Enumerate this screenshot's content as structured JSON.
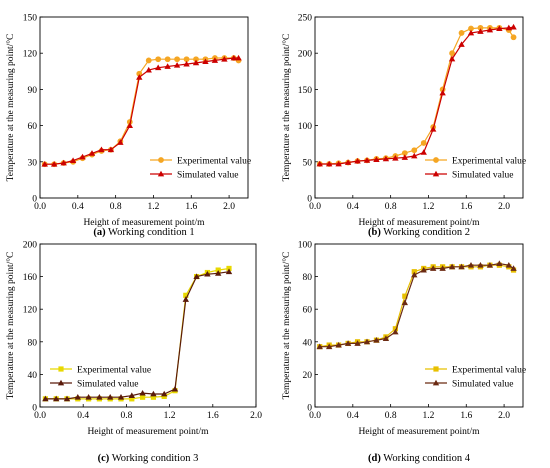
{
  "chart_data": [
    {
      "type": "line",
      "xlabel": "Height of measurement point/m",
      "ylabel": "Temperature at the measuring point/°C",
      "caption_bold": "(a)",
      "caption_text": " Working condition 1",
      "xlim": [
        0.0,
        2.2
      ],
      "ylim": [
        0,
        150
      ],
      "xticks": [
        "0.0",
        "0.4",
        "0.8",
        "1.2",
        "1.6",
        "2.0"
      ],
      "yticks": [
        "0",
        "30",
        "60",
        "90",
        "120",
        "150"
      ],
      "legend_position": "bottom-right",
      "series": [
        {
          "name": "Experimental value",
          "color": "#f5a623",
          "marker": "circle",
          "x": [
            0.05,
            0.15,
            0.25,
            0.35,
            0.45,
            0.55,
            0.65,
            0.75,
            0.85,
            0.95,
            1.05,
            1.15,
            1.25,
            1.35,
            1.45,
            1.55,
            1.65,
            1.75,
            1.85,
            1.95,
            2.05,
            2.1
          ],
          "y": [
            28,
            28,
            29,
            30,
            33,
            36,
            39,
            40,
            47,
            63,
            103,
            114,
            115,
            115,
            115,
            115,
            115,
            115,
            116,
            116,
            116,
            114
          ]
        },
        {
          "name": "Simulated value",
          "color": "#cc0000",
          "marker": "triangle",
          "x": [
            0.05,
            0.15,
            0.25,
            0.35,
            0.45,
            0.55,
            0.65,
            0.75,
            0.85,
            0.95,
            1.05,
            1.15,
            1.25,
            1.35,
            1.45,
            1.55,
            1.65,
            1.75,
            1.85,
            1.95,
            2.05,
            2.1
          ],
          "y": [
            28,
            28,
            29,
            31,
            34,
            37,
            40,
            40,
            46,
            60,
            100,
            106,
            108,
            109,
            110,
            111,
            112,
            113,
            114,
            115,
            116,
            116
          ]
        }
      ]
    },
    {
      "type": "line",
      "xlabel": "Height of measurement point/m",
      "ylabel": "Temperature at the measuring point/°C",
      "caption_bold": "(b)",
      "caption_text": " Working condition 2",
      "xlim": [
        0.0,
        2.2
      ],
      "ylim": [
        0,
        250
      ],
      "xticks": [
        "0.0",
        "0.4",
        "0.8",
        "1.2",
        "1.6",
        "2.0"
      ],
      "yticks": [
        "0",
        "50",
        "100",
        "150",
        "200",
        "250"
      ],
      "legend_position": "bottom-right",
      "series": [
        {
          "name": "Experimental value",
          "color": "#f5a623",
          "marker": "circle",
          "x": [
            0.05,
            0.15,
            0.25,
            0.35,
            0.45,
            0.55,
            0.65,
            0.75,
            0.85,
            0.95,
            1.05,
            1.15,
            1.25,
            1.35,
            1.45,
            1.55,
            1.65,
            1.75,
            1.85,
            1.95,
            2.05,
            2.1
          ],
          "y": [
            47,
            47,
            48,
            49,
            51,
            52,
            54,
            55,
            58,
            62,
            66,
            76,
            98,
            150,
            200,
            228,
            234,
            235,
            235,
            235,
            232,
            222
          ]
        },
        {
          "name": "Simulated value",
          "color": "#cc0000",
          "marker": "triangle",
          "x": [
            0.05,
            0.15,
            0.25,
            0.35,
            0.45,
            0.55,
            0.65,
            0.75,
            0.85,
            0.95,
            1.05,
            1.15,
            1.25,
            1.35,
            1.45,
            1.55,
            1.65,
            1.75,
            1.85,
            1.95,
            2.05,
            2.1
          ],
          "y": [
            47,
            47,
            47,
            49,
            51,
            52,
            53,
            54,
            55,
            56,
            58,
            63,
            95,
            145,
            192,
            212,
            228,
            230,
            232,
            234,
            235,
            236
          ]
        }
      ]
    },
    {
      "type": "line",
      "xlabel": "Height of measurement point/m",
      "ylabel": "Temperature at the measuring point/°C",
      "caption_bold": "(c)",
      "caption_text": " Working condition 3",
      "xlim": [
        0.0,
        2.0
      ],
      "ylim": [
        0,
        200
      ],
      "xticks": [
        "0.0",
        "0.4",
        "0.8",
        "1.2",
        "1.6",
        "2.0"
      ],
      "yticks": [
        "0",
        "40",
        "80",
        "120",
        "160",
        "200"
      ],
      "legend_position": "bottom-left",
      "series": [
        {
          "name": "Experimental value",
          "color": "#e8d800",
          "marker": "square",
          "x": [
            0.05,
            0.15,
            0.25,
            0.35,
            0.45,
            0.55,
            0.65,
            0.75,
            0.85,
            0.95,
            1.05,
            1.15,
            1.25,
            1.35,
            1.45,
            1.55,
            1.65,
            1.75
          ],
          "y": [
            10,
            10,
            10,
            10,
            10,
            10,
            10,
            10,
            10,
            12,
            12,
            13,
            20,
            137,
            160,
            165,
            168,
            170
          ]
        },
        {
          "name": "Simulated value",
          "color": "#5a1a0a",
          "marker": "triangle",
          "x": [
            0.05,
            0.15,
            0.25,
            0.35,
            0.45,
            0.55,
            0.65,
            0.75,
            0.85,
            0.95,
            1.05,
            1.15,
            1.25,
            1.35,
            1.45,
            1.55,
            1.65,
            1.75
          ],
          "y": [
            10,
            10,
            10,
            12,
            12,
            12,
            12,
            12,
            14,
            17,
            16,
            16,
            22,
            132,
            160,
            163,
            164,
            166
          ]
        }
      ]
    },
    {
      "type": "line",
      "xlabel": "Height of measurement point/m",
      "ylabel": "Temperature at the measuring point/°C",
      "caption_bold": "(d)",
      "caption_text": " Working condition 4",
      "xlim": [
        0.0,
        2.2
      ],
      "ylim": [
        0,
        100
      ],
      "xticks": [
        "0.0",
        "0.4",
        "0.8",
        "1.2",
        "1.6",
        "2.0"
      ],
      "yticks": [
        "0",
        "20",
        "40",
        "60",
        "80",
        "100"
      ],
      "legend_position": "bottom-right",
      "series": [
        {
          "name": "Experimental value",
          "color": "#e8c000",
          "marker": "square",
          "x": [
            0.05,
            0.15,
            0.25,
            0.35,
            0.45,
            0.55,
            0.65,
            0.75,
            0.85,
            0.95,
            1.05,
            1.15,
            1.25,
            1.35,
            1.45,
            1.55,
            1.65,
            1.75,
            1.85,
            1.95,
            2.05,
            2.1
          ],
          "y": [
            37,
            38,
            38,
            39,
            40,
            40,
            41,
            43,
            48,
            68,
            83,
            85,
            86,
            86,
            86,
            86,
            86,
            86,
            87,
            87,
            86,
            84
          ]
        },
        {
          "name": "Simulated value",
          "color": "#6b2a12",
          "marker": "triangle",
          "x": [
            0.05,
            0.15,
            0.25,
            0.35,
            0.45,
            0.55,
            0.65,
            0.75,
            0.85,
            0.95,
            1.05,
            1.15,
            1.25,
            1.35,
            1.45,
            1.55,
            1.65,
            1.75,
            1.85,
            1.95,
            2.05,
            2.1
          ],
          "y": [
            37,
            37,
            38,
            39,
            39,
            40,
            41,
            42,
            46,
            64,
            81,
            84,
            85,
            85,
            86,
            86,
            87,
            87,
            87,
            88,
            87,
            85
          ]
        }
      ]
    }
  ]
}
